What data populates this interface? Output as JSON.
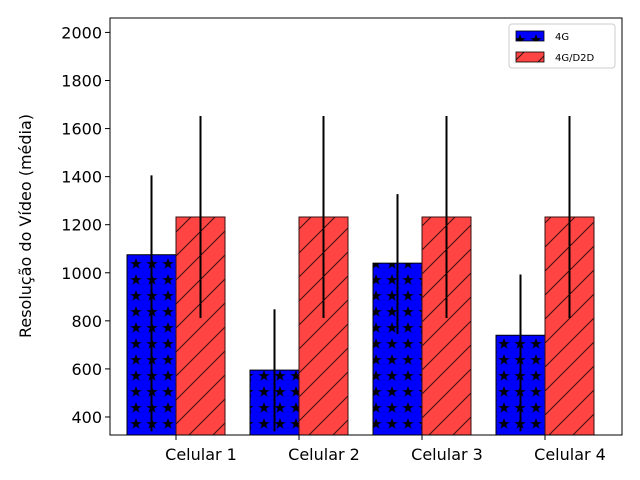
{
  "chart_data": {
    "type": "bar",
    "title": "",
    "xlabel": "",
    "ylabel": "Resolução do Vídeo (média)",
    "categories": [
      "Celular 1",
      "Celular 2",
      "Celular 3",
      "Celular 4"
    ],
    "ylim": [
      325,
      2060
    ],
    "yticks": [
      "400",
      "600",
      "800",
      "1000",
      "1200",
      "1400",
      "1600",
      "1800",
      "2000"
    ],
    "grid": false,
    "legend_position": "top-right",
    "series": [
      {
        "name": "4G",
        "values": [
          1075,
          595,
          1040,
          740
        ],
        "error_upper": [
          1405,
          848,
          1327,
          993
        ],
        "error_lower": [
          340,
          340,
          745,
          340
        ],
        "color": "#0000ff",
        "hatch": "stars"
      },
      {
        "name": "4G/D2D",
        "values": [
          1232,
          1232,
          1232,
          1232
        ],
        "error_upper": [
          1652,
          1652,
          1652,
          1652
        ],
        "error_lower": [
          812,
          812,
          812,
          812
        ],
        "color": "#ff4444",
        "hatch": "diagonal"
      }
    ]
  }
}
